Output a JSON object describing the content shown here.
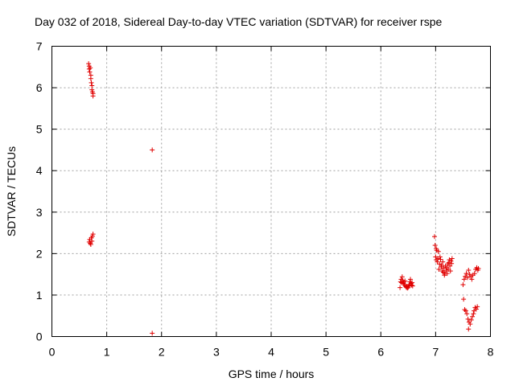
{
  "chart_data": {
    "type": "scatter",
    "title": "Day 032 of 2018, Sidereal Day-to-day VTEC variation (SDTVAR) for receiver rspe",
    "xlabel": "GPS time / hours",
    "ylabel": "SDTVAR / TECUs",
    "xlim": [
      0,
      8
    ],
    "ylim": [
      0,
      7
    ],
    "xticks": [
      "0",
      "1",
      "2",
      "3",
      "4",
      "5",
      "6",
      "7",
      "8"
    ],
    "yticks": [
      "0",
      "1",
      "2",
      "3",
      "4",
      "5",
      "6",
      "7"
    ],
    "grid": true,
    "marker": "+",
    "series": [
      {
        "name": "SDTVAR",
        "color": "#e00000",
        "points": [
          [
            0.67,
            6.58
          ],
          [
            0.68,
            6.52
          ],
          [
            0.68,
            6.45
          ],
          [
            0.69,
            6.38
          ],
          [
            0.7,
            6.48
          ],
          [
            0.71,
            6.3
          ],
          [
            0.71,
            6.22
          ],
          [
            0.72,
            6.12
          ],
          [
            0.73,
            6.05
          ],
          [
            0.73,
            5.95
          ],
          [
            0.74,
            5.9
          ],
          [
            0.75,
            5.86
          ],
          [
            0.75,
            5.8
          ],
          [
            0.68,
            2.28
          ],
          [
            0.69,
            2.34
          ],
          [
            0.7,
            2.25
          ],
          [
            0.71,
            2.22
          ],
          [
            0.72,
            2.38
          ],
          [
            0.73,
            2.3
          ],
          [
            0.74,
            2.42
          ],
          [
            0.75,
            2.47
          ],
          [
            1.83,
            4.5
          ],
          [
            1.83,
            0.08
          ],
          [
            6.35,
            1.18
          ],
          [
            6.36,
            1.32
          ],
          [
            6.37,
            1.38
          ],
          [
            6.38,
            1.3
          ],
          [
            6.39,
            1.44
          ],
          [
            6.4,
            1.35
          ],
          [
            6.41,
            1.28
          ],
          [
            6.42,
            1.31
          ],
          [
            6.43,
            1.25
          ],
          [
            6.44,
            1.34
          ],
          [
            6.45,
            1.22
          ],
          [
            6.46,
            1.2
          ],
          [
            6.47,
            1.18
          ],
          [
            6.48,
            1.21
          ],
          [
            6.49,
            1.17
          ],
          [
            6.5,
            1.19
          ],
          [
            6.51,
            1.22
          ],
          [
            6.52,
            1.25
          ],
          [
            6.53,
            1.32
          ],
          [
            6.54,
            1.38
          ],
          [
            6.55,
            1.28
          ],
          [
            6.56,
            1.24
          ],
          [
            6.57,
            1.3
          ],
          [
            6.58,
            1.22
          ],
          [
            6.98,
            2.41
          ],
          [
            6.99,
            2.2
          ],
          [
            7.0,
            1.92
          ],
          [
            7.01,
            2.12
          ],
          [
            7.01,
            1.85
          ],
          [
            7.02,
            2.08
          ],
          [
            7.03,
            1.8
          ],
          [
            7.04,
            1.88
          ],
          [
            7.05,
            2.05
          ],
          [
            7.06,
            1.62
          ],
          [
            7.07,
            1.75
          ],
          [
            7.08,
            1.92
          ],
          [
            7.09,
            1.86
          ],
          [
            7.1,
            1.68
          ],
          [
            7.11,
            1.72
          ],
          [
            7.12,
            1.58
          ],
          [
            7.13,
            1.8
          ],
          [
            7.14,
            1.55
          ],
          [
            7.15,
            1.65
          ],
          [
            7.16,
            1.48
          ],
          [
            7.17,
            1.52
          ],
          [
            7.18,
            1.7
          ],
          [
            7.19,
            1.6
          ],
          [
            7.2,
            1.66
          ],
          [
            7.21,
            1.52
          ],
          [
            7.22,
            1.75
          ],
          [
            7.23,
            1.62
          ],
          [
            7.24,
            1.78
          ],
          [
            7.25,
            1.85
          ],
          [
            7.26,
            1.7
          ],
          [
            7.27,
            1.58
          ],
          [
            7.28,
            1.82
          ],
          [
            7.29,
            1.76
          ],
          [
            7.3,
            1.88
          ],
          [
            7.5,
            1.25
          ],
          [
            7.51,
            0.9
          ],
          [
            7.52,
            1.38
          ],
          [
            7.53,
            0.65
          ],
          [
            7.54,
            1.45
          ],
          [
            7.55,
            0.62
          ],
          [
            7.56,
            1.52
          ],
          [
            7.57,
            0.55
          ],
          [
            7.58,
            1.42
          ],
          [
            7.59,
            0.42
          ],
          [
            7.6,
            1.6
          ],
          [
            7.6,
            0.18
          ],
          [
            7.61,
            0.35
          ],
          [
            7.62,
            1.5
          ],
          [
            7.63,
            0.3
          ],
          [
            7.64,
            1.45
          ],
          [
            7.65,
            0.4
          ],
          [
            7.66,
            1.38
          ],
          [
            7.67,
            0.48
          ],
          [
            7.68,
            1.48
          ],
          [
            7.69,
            0.55
          ],
          [
            7.7,
            0.62
          ],
          [
            7.71,
            1.52
          ],
          [
            7.72,
            0.7
          ],
          [
            7.73,
            1.62
          ],
          [
            7.74,
            0.66
          ],
          [
            7.75,
            1.66
          ],
          [
            7.76,
            0.72
          ],
          [
            7.77,
            1.6
          ],
          [
            7.78,
            1.64
          ]
        ]
      }
    ]
  }
}
